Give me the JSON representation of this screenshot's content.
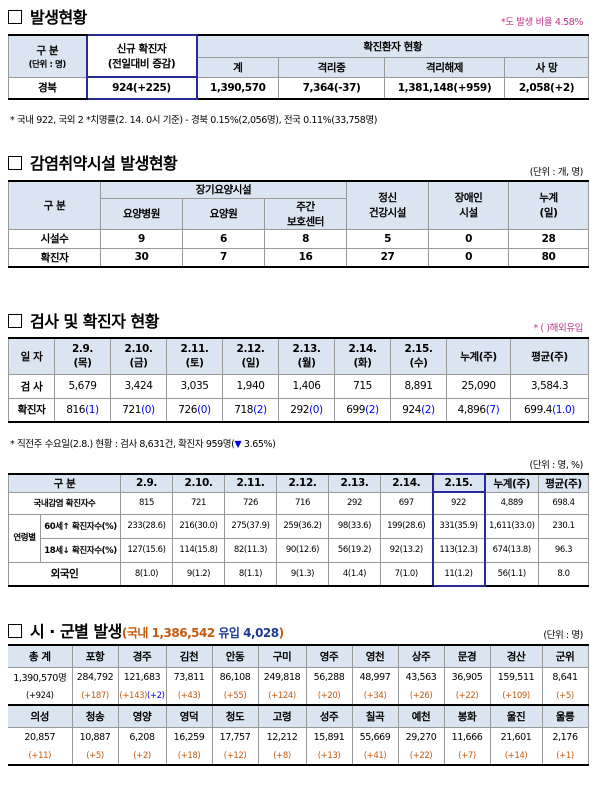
{
  "s1": {
    "title": "발생현황",
    "note_right": "*도 발생 비율 4.58%",
    "h_category": "구 분",
    "h_unit": "(단위 : 명)",
    "h_new1": "신규 확진자",
    "h_new2": "(전일대비 증감)",
    "h_status": "확진환자 현황",
    "h_total": "계",
    "h_isolating": "격리중",
    "h_released": "격리해제",
    "h_death": "사 망",
    "region": "경북",
    "new_cases": "924(+225)",
    "total": "1,390,570",
    "isolating": "7,364(-37)",
    "released": "1,381,148(+959)",
    "death": "2,058(+2)",
    "footnote": "* 국내 922, 국외 2  *치명률(2. 14. 0시 기준) - 경북 0.15%(2,056명), 전국 0.11%(33,758명)"
  },
  "s2": {
    "title": "감염취약시설 발생현황",
    "unit": "(단위 : 개, 명)",
    "h_category": "구 분",
    "h_longterm": "장기요양시설",
    "h_hospital": "요양병원",
    "h_nursing": "요양원",
    "h_day1": "주간",
    "h_day2": "보호센터",
    "h_mental1": "정신",
    "h_mental2": "건강시설",
    "h_disabled1": "장애인",
    "h_disabled2": "시설",
    "h_cum1": "누계",
    "h_cum2": "(일)",
    "rows": [
      {
        "label": "시설수",
        "v": [
          "9",
          "6",
          "8",
          "5",
          "0",
          "28"
        ]
      },
      {
        "label": "확진자",
        "v": [
          "30",
          "7",
          "16",
          "27",
          "0",
          "80"
        ]
      }
    ]
  },
  "s3": {
    "title": "검사 및 확진자 현황",
    "note_right": "* ( )해외유입",
    "h_date": "일 자",
    "dates": [
      "2.9.",
      "2.10.",
      "2.11.",
      "2.12.",
      "2.13.",
      "2.14.",
      "2.15."
    ],
    "days": [
      "(목)",
      "(금)",
      "(토)",
      "(일)",
      "(월)",
      "(화)",
      "(수)"
    ],
    "h_cum": "누계(주)",
    "h_avg": "평균(주)",
    "r_test": "검 사",
    "tests": [
      "5,679",
      "3,424",
      "3,035",
      "1,940",
      "1,406",
      "715",
      "8,891",
      "25,090",
      "3,584.3"
    ],
    "r_cases": "확진자",
    "cases_main": [
      "816",
      "721",
      "726",
      "718",
      "292",
      "699",
      "924",
      "4,896",
      "699.4"
    ],
    "cases_foreign": [
      "(1)",
      "(0)",
      "(0)",
      "(2)",
      "(0)",
      "(2)",
      "(2)",
      "(7)",
      "(1.0)"
    ],
    "footnote_a": "* 직전주 수요일(2.8.) 현황 : 검사 8,631건, 확진자 959명(",
    "footnote_b": "▼",
    "footnote_c": " 3.65%)"
  },
  "s4": {
    "unit": "(단위 : 명, %)",
    "h_category": "구 분",
    "dates": [
      "2.9.",
      "2.10.",
      "2.11.",
      "2.12.",
      "2.13.",
      "2.14.",
      "2.15."
    ],
    "h_cum": "누계(주)",
    "h_avg": "평균(주)",
    "r_domestic": "국내감염 확진자수",
    "domestic": [
      "815",
      "721",
      "726",
      "716",
      "292",
      "697",
      "922",
      "4,889",
      "698.4"
    ],
    "r_age": "연령별",
    "r_60": "60세↑",
    "r_18": "18세↓",
    "r_count": "확진자수(%)",
    "age60": [
      "233(28.6)",
      "216(30.0)",
      "275(37.9)",
      "259(36.2)",
      "98(33.6)",
      "199(28.6)",
      "331(35.9)",
      "1,611(33.0)",
      "230.1"
    ],
    "age18": [
      "127(15.6)",
      "114(15.8)",
      "82(11.3)",
      "90(12.6)",
      "56(19.2)",
      "92(13.2)",
      "113(12.3)",
      "674(13.8)",
      "96.3"
    ],
    "r_foreign": "외국인",
    "foreign": [
      "8(1.0)",
      "9(1.2)",
      "8(1.1)",
      "9(1.3)",
      "4(1.4)",
      "7(1.0)",
      "11(1.2)",
      "56(1.1)",
      "8.0"
    ]
  },
  "s5": {
    "title": "시 · 군별 발생",
    "sub_a": "(국내 ",
    "sub_b": "1,386,542",
    "sub_c": " 유입 ",
    "sub_d": "4,028",
    "sub_e": ")",
    "unit": "(단위 : 명)",
    "row1_names": [
      "총 계",
      "포항",
      "경주",
      "김천",
      "안동",
      "구미",
      "영주",
      "영천",
      "상주",
      "문경",
      "경산",
      "군위"
    ],
    "row1_vals": [
      "1,390,570명",
      "284,792",
      "121,683",
      "73,811",
      "86,108",
      "249,818",
      "56,288",
      "48,997",
      "43,563",
      "36,905",
      "159,511",
      "8,641"
    ],
    "row1_delta": [
      "(+924)",
      "(+187)",
      "(+143)",
      "(+43)",
      "(+55)",
      "(+124)",
      "(+20)",
      "(+34)",
      "(+26)",
      "(+22)",
      "(+109)",
      "(+5)"
    ],
    "gyeongju_extra": "(+2)",
    "row2_names": [
      "의성",
      "청송",
      "영양",
      "영덕",
      "청도",
      "고령",
      "성주",
      "칠곡",
      "예천",
      "봉화",
      "울진",
      "울릉"
    ],
    "row2_vals": [
      "20,857",
      "10,887",
      "6,208",
      "16,259",
      "17,757",
      "12,212",
      "15,891",
      "55,669",
      "29,270",
      "11,666",
      "21,601",
      "2,176"
    ],
    "row2_delta": [
      "(+11)",
      "(+5)",
      "(+2)",
      "(+18)",
      "(+12)",
      "(+8)",
      "(+13)",
      "(+41)",
      "(+22)",
      "(+7)",
      "(+14)",
      "(+1)"
    ]
  }
}
